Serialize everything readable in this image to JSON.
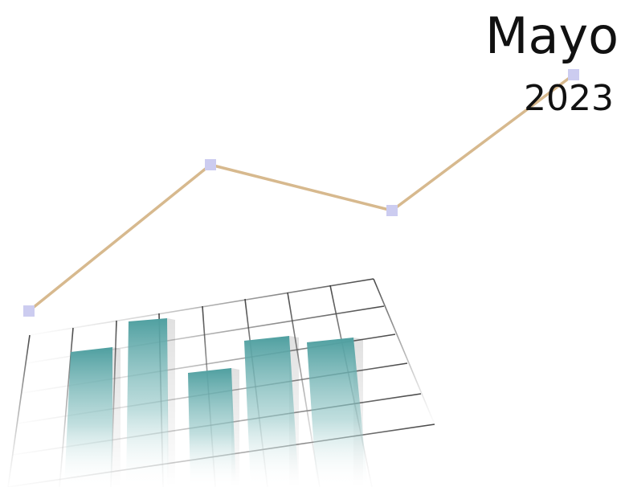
{
  "title": {
    "month": "Mayo",
    "year": "2023"
  },
  "colors": {
    "background": "#ffffff",
    "text": "#111111",
    "trend_line": "#d7b98e",
    "trend_marker": "#ccccf0",
    "bar_teal": "#4f9fa0",
    "grid_line": "#555555"
  },
  "icons": {
    "illustration": "bar-chart-with-trend-line-icon"
  }
}
